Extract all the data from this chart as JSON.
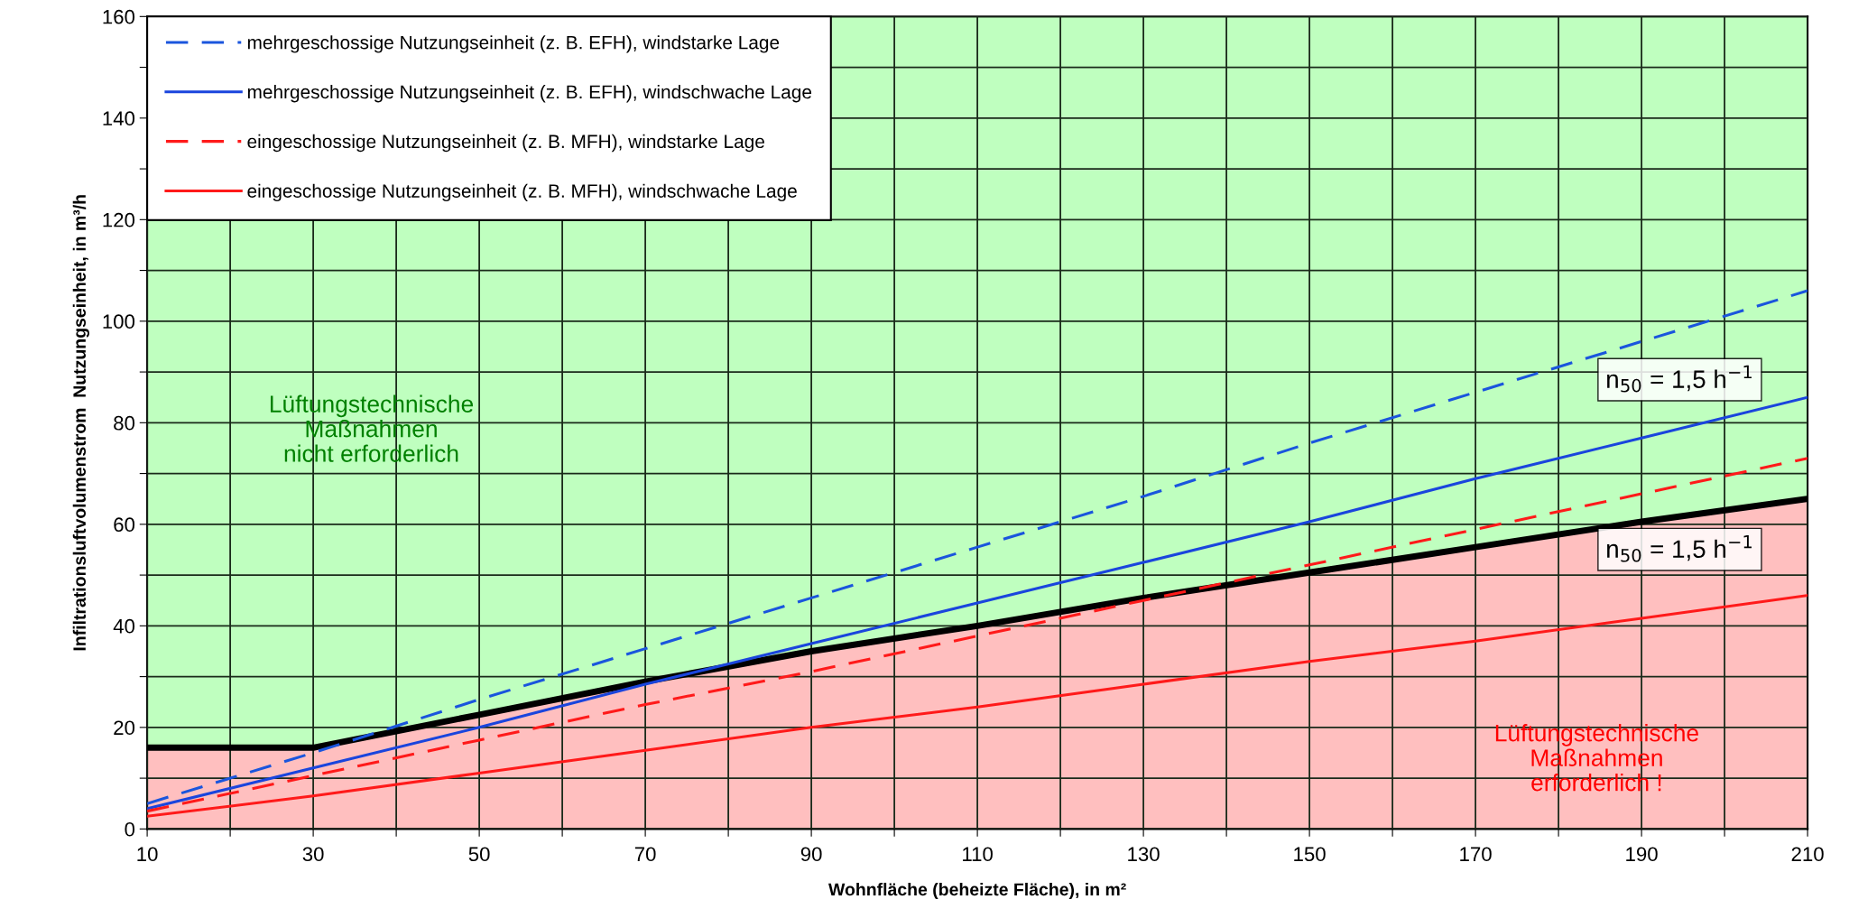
{
  "chart_data": {
    "type": "line",
    "xlabel": "Wohnfläche (beheizte Fläche), in m²",
    "ylabel": "Infiltrationsluftvolumenstrom  Nutzungseinheit, in m³/h",
    "x": [
      10,
      30,
      50,
      70,
      90,
      110,
      130,
      150,
      170,
      190,
      210
    ],
    "series": [
      {
        "name": "mehrgeschossige Nutzungseinheit (z. B. EFH), windstarke Lage",
        "color": "#1a55dd",
        "line_style": "dashed",
        "values": [
          5,
          15,
          25.5,
          35.5,
          45.5,
          55.5,
          65.5,
          76,
          86,
          96,
          106
        ]
      },
      {
        "name": "mehrgeschossige Nutzungseinheit (z. B. EFH), windschwache Lage",
        "color": "#1a45dd",
        "line_style": "solid",
        "values": [
          4,
          12,
          20,
          28.5,
          36.5,
          44.5,
          52.5,
          60.5,
          69,
          77,
          85
        ]
      },
      {
        "name": "eingeschossige Nutzungseinheit (z. B. MFH), windstarke Lage",
        "color": "#ff1a1a",
        "line_style": "dashed",
        "values": [
          3.5,
          10.5,
          17.5,
          24.5,
          31,
          38,
          45,
          52,
          59,
          66,
          73
        ]
      },
      {
        "name": "eingeschossige Nutzungseinheit (z. B. MFH), windschwache Lage",
        "color": "#ff1a1a",
        "line_style": "solid",
        "values": [
          2.5,
          6.5,
          11,
          15.5,
          20,
          24,
          28.5,
          33,
          37,
          41.5,
          46
        ]
      },
      {
        "type": "area",
        "color": "#ffbfbf",
        "values": [
          16,
          16,
          22.5,
          29,
          35,
          40,
          45.5,
          50.5,
          55.5,
          60.5,
          65
        ]
      }
    ],
    "bands": [
      {
        "axis": "y",
        "from": 0,
        "to": 160,
        "color": "#bfffbf"
      }
    ],
    "annotations": [
      "Lüftungstechnische\nMaßnahmen\nnicht erforderlich",
      "Lüftungstechnische\nMaßnahmen\nerforderlich !",
      "n$_{50}$ = 1,5 h$^{−1}$",
      "n$_{50}$ = 1,5 h$^{−1}$"
    ],
    "xlim": [
      10,
      210
    ],
    "xticks": [
      10,
      {
        "value": 20,
        "label": null
      },
      30,
      {
        "value": 40,
        "label": null
      },
      50,
      {
        "value": 60,
        "label": null
      },
      70,
      {
        "value": 80,
        "label": null
      },
      90,
      {
        "value": 100,
        "label": null
      },
      110,
      {
        "value": 120,
        "label": null
      },
      130,
      {
        "value": 140,
        "label": null
      },
      150,
      {
        "value": 160,
        "label": null
      },
      170,
      {
        "value": 180,
        "label": null
      },
      190,
      {
        "value": 200,
        "label": null
      },
      210
    ],
    "ylim": [
      0,
      160
    ],
    "yticks": [
      0,
      {
        "value": 10,
        "label": null
      },
      20,
      {
        "value": 30,
        "label": null
      },
      40,
      {
        "value": 50,
        "label": null
      },
      60,
      {
        "value": 70,
        "label": null
      },
      80,
      {
        "value": 90,
        "label": null
      },
      100,
      {
        "value": 110,
        "label": null
      },
      120,
      {
        "value": 130,
        "label": null
      },
      140,
      {
        "value": 150,
        "label": null
      },
      160
    ],
    "grid": true,
    "legend": "top left"
  }
}
